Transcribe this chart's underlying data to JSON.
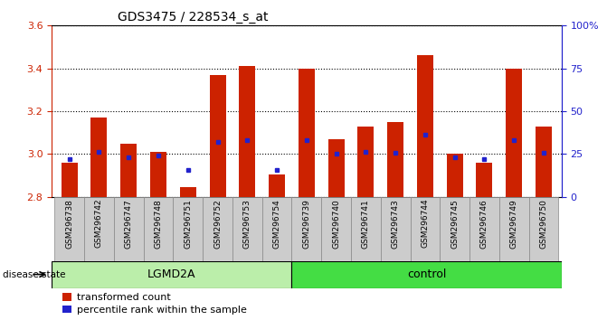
{
  "title": "GDS3475 / 228534_s_at",
  "samples": [
    "GSM296738",
    "GSM296742",
    "GSM296747",
    "GSM296748",
    "GSM296751",
    "GSM296752",
    "GSM296753",
    "GSM296754",
    "GSM296739",
    "GSM296740",
    "GSM296741",
    "GSM296743",
    "GSM296744",
    "GSM296745",
    "GSM296746",
    "GSM296749",
    "GSM296750"
  ],
  "groups": [
    "LGMD2A",
    "LGMD2A",
    "LGMD2A",
    "LGMD2A",
    "LGMD2A",
    "LGMD2A",
    "LGMD2A",
    "LGMD2A",
    "control",
    "control",
    "control",
    "control",
    "control",
    "control",
    "control",
    "control",
    "control"
  ],
  "transformed_count": [
    2.96,
    3.17,
    3.05,
    3.01,
    2.845,
    3.37,
    3.41,
    2.905,
    3.4,
    3.07,
    3.13,
    3.15,
    3.46,
    3.0,
    2.96,
    3.4,
    3.13
  ],
  "percentile_rank": [
    2.975,
    3.01,
    2.985,
    2.995,
    2.925,
    3.055,
    3.065,
    2.925,
    3.065,
    3.0,
    3.01,
    3.005,
    3.09,
    2.985,
    2.975,
    3.065,
    3.005
  ],
  "ymin": 2.8,
  "ymax": 3.6,
  "yticks_left": [
    2.8,
    3.0,
    3.2,
    3.4,
    3.6
  ],
  "right_yticks_values": [
    0,
    25,
    50,
    75,
    100
  ],
  "right_ytick_labels": [
    "0",
    "25",
    "50",
    "75",
    "100%"
  ],
  "bar_color": "#cc2200",
  "percentile_color": "#2222cc",
  "lgmd2a_color": "#bbeeaa",
  "control_color": "#44dd44",
  "group_label_lgmd2a": "LGMD2A",
  "group_label_control": "control",
  "disease_state_label": "disease state",
  "legend_bar": "transformed count",
  "legend_perc": "percentile rank within the sample",
  "left_axis_color": "#cc2200",
  "right_axis_color": "#2222cc",
  "bar_width": 0.55,
  "lgmd2a_count": 8,
  "control_count": 9
}
